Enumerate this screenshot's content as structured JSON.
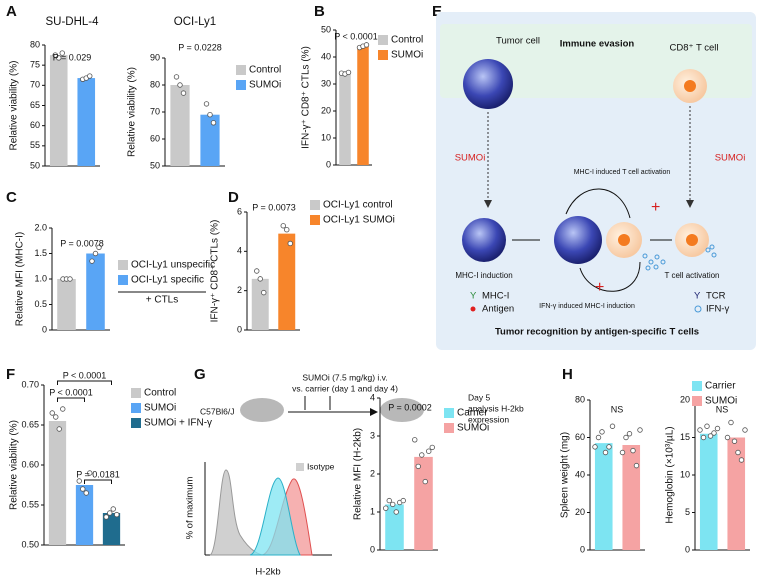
{
  "panel_labels": [
    "A",
    "B",
    "C",
    "D",
    "E",
    "F",
    "G",
    "H"
  ],
  "chart_data": [
    {
      "type": "bar",
      "title": "SU-DHL-4",
      "ylabel": "Relative viability (%)",
      "ylim": [
        50,
        80
      ],
      "yticks": [
        50,
        55,
        60,
        65,
        70,
        75,
        80
      ],
      "series": [
        {
          "color": "#c9c9c9",
          "values": [
            77.5
          ],
          "points": [
            77.5,
            76.8,
            78.0
          ]
        },
        {
          "color": "#59a5f5",
          "values": [
            71.8
          ],
          "points": [
            71.5,
            71.8,
            72.3
          ]
        }
      ],
      "annotations": [
        "P = 0.029"
      ]
    },
    {
      "type": "bar",
      "title": "OCI-Ly1",
      "ylabel": "Relative viability (%)",
      "ylim": [
        50,
        90
      ],
      "yticks": [
        50,
        60,
        70,
        80,
        90
      ],
      "series": [
        {
          "name": "Control",
          "color": "#c9c9c9",
          "values": [
            80
          ],
          "points": [
            83,
            80,
            77
          ]
        },
        {
          "name": "SUMOi",
          "color": "#59a5f5",
          "values": [
            69
          ],
          "points": [
            73,
            69,
            66
          ]
        }
      ],
      "annotations": [
        "P = 0.0228"
      ]
    },
    {
      "type": "bar",
      "ylabel": "IFN-γ⁺ CD8⁺ CTLs (%)",
      "ylim": [
        0,
        50
      ],
      "yticks": [
        0,
        10,
        20,
        30,
        40,
        50
      ],
      "series": [
        {
          "name": "Control",
          "color": "#c9c9c9",
          "values": [
            34
          ],
          "points": [
            34,
            33.7,
            34.3
          ]
        },
        {
          "name": "SUMOi",
          "color": "#f7852b",
          "values": [
            44
          ],
          "points": [
            43.5,
            44,
            44.5
          ]
        }
      ],
      "annotations": [
        "P < 0.0001"
      ]
    },
    {
      "type": "bar",
      "ylabel": "Relative MFI (MHC-I)",
      "ylim": [
        0,
        2
      ],
      "yticks": [
        0,
        0.5,
        {
          "value": 1,
          "label": "1.0"
        },
        1.5,
        {
          "value": 2,
          "label": "2.0"
        }
      ],
      "series": [
        {
          "name": "OCI-Ly1 unspecific",
          "color": "#c9c9c9",
          "values": [
            1
          ],
          "points": [
            1,
            1,
            1
          ]
        },
        {
          "name": "OCI-Ly1 specific",
          "color": "#59a5f5",
          "values": [
            1.5
          ],
          "points": [
            1.35,
            1.5,
            1.62
          ]
        }
      ],
      "legend_note": "+ CTLs",
      "annotations": [
        "P = 0.0078"
      ]
    },
    {
      "type": "bar",
      "ylabel": "IFN-γ⁺ CD8⁺ CTLs (%)",
      "ylim": [
        0,
        6
      ],
      "yticks": [
        0,
        2,
        4,
        6
      ],
      "series": [
        {
          "name": "OCI-Ly1 control",
          "color": "#c9c9c9",
          "values": [
            2.6
          ],
          "points": [
            3,
            2.6,
            1.9
          ]
        },
        {
          "name": "OCI-Ly1 SUMOi",
          "color": "#f7852b",
          "values": [
            4.9
          ],
          "points": [
            5.3,
            5.1,
            4.4
          ]
        }
      ],
      "annotations": [
        "P = 0.0073"
      ]
    },
    {
      "type": "bar",
      "ylabel": "Relative viability (%)",
      "ylim": [
        0.5,
        0.7
      ],
      "yticks": [
        {
          "value": 0.5,
          "label": "0.50"
        },
        0.55,
        {
          "value": 0.6,
          "label": "0.60"
        },
        0.65,
        {
          "value": 0.7,
          "label": "0.70"
        }
      ],
      "series": [
        {
          "name": "Control",
          "color": "#c9c9c9",
          "values": [
            0.655
          ],
          "points": [
            0.665,
            0.66,
            0.645,
            0.67
          ]
        },
        {
          "name": "SUMOi",
          "color": "#59a5f5",
          "values": [
            0.575
          ],
          "points": [
            0.58,
            0.57,
            0.565,
            0.59
          ]
        },
        {
          "name": "SUMOi + IFN-γ",
          "color": "#1f6c8e",
          "values": [
            0.54
          ],
          "points": [
            0.535,
            0.54,
            0.545,
            0.538
          ]
        }
      ],
      "annotations": [
        "P < 0.0001",
        "P < 0.0001",
        "P = 0.0181"
      ]
    },
    {
      "type": "bar",
      "ylabel": "Relative MFI (H-2kb)",
      "ylim": [
        0,
        4
      ],
      "yticks": [
        0,
        1,
        2,
        3,
        4
      ],
      "series": [
        {
          "name": "Carrier",
          "color": "#7de4f2",
          "values": [
            1.2
          ],
          "points": [
            1.1,
            1.3,
            1.2,
            1.0,
            1.25,
            1.3
          ]
        },
        {
          "name": "SUMOi",
          "color": "#f5a3a3",
          "values": [
            2.45
          ],
          "points": [
            2.9,
            2.2,
            2.5,
            1.8,
            2.6,
            2.7
          ]
        }
      ],
      "annotations": [
        "P = 0.0002"
      ]
    },
    {
      "type": "bar",
      "ylabel": "Spleen weight (mg)",
      "ylim": [
        0,
        80
      ],
      "yticks": [
        0,
        20,
        40,
        60,
        80
      ],
      "series": [
        {
          "color": "#7de4f2",
          "values": [
            57
          ],
          "points": [
            55,
            60,
            63,
            52,
            55,
            66
          ]
        },
        {
          "color": "#f5a3a3",
          "values": [
            56
          ],
          "points": [
            52,
            60,
            62,
            53,
            45,
            64
          ]
        }
      ],
      "annotations": [
        "NS"
      ]
    },
    {
      "type": "bar",
      "ylabel": "Hemoglobin (×10³/µL)",
      "ylim": [
        0,
        20
      ],
      "yticks": [
        0,
        5,
        10,
        15,
        20
      ],
      "series": [
        {
          "name": "Carrier",
          "color": "#7de4f2",
          "values": [
            15.5
          ],
          "points": [
            16,
            15,
            16.5,
            15.2,
            15.6,
            16.2
          ]
        },
        {
          "name": "SUMOi",
          "color": "#f5a3a3",
          "values": [
            15
          ],
          "points": [
            15,
            17,
            14.5,
            13,
            12,
            16
          ]
        }
      ],
      "annotations": [
        "NS"
      ]
    }
  ],
  "diagram": {
    "top_title": "Immune evasion",
    "tumor_cell": "Tumor cell",
    "t_cell": "CD8⁺ T cell",
    "sumoi_left": "SUMOi",
    "sumoi_right": "SUMOi",
    "mhc_induced_activation": "MHC-I induced T cell activation",
    "mhc_induction": "MHC-I induction",
    "t_cell_activation": "T cell activation",
    "ifn_induced": "IFN-γ induced MHC-I induction",
    "key_mhc": "MHC-I",
    "key_antigen": "Antigen",
    "key_tcr": "TCR",
    "key_ifn": "IFN-γ",
    "bottom_title": "Tumor recognition by antigen-specific T cells"
  },
  "panel_g": {
    "strain": "C57Bl6/J",
    "dose": "SUMOi (7.5 mg/kg) i.v.",
    "schedule": "vs. carrier (day 1 and day 4)",
    "day": "Day 5",
    "analysis": "analysis H-2kb",
    "analysis_end": "expression",
    "hist_ylabel": "% of maximum",
    "hist_xlabel": "H-2kb",
    "isotype": "Isotype"
  }
}
